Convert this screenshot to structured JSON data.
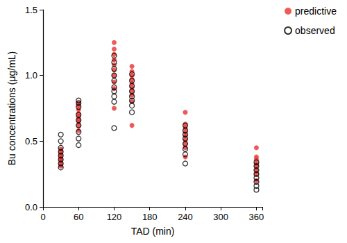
{
  "chart_data": {
    "type": "scatter",
    "x_label": "TAD (min)",
    "y_label": "Bu concentrations (μg/mL)",
    "xlim": [
      0,
      370
    ],
    "xticks": [
      0,
      60,
      120,
      180,
      240,
      300,
      360
    ],
    "ylim": [
      0,
      1.5
    ],
    "yticks": [
      {
        "value": 0,
        "label": "0.0"
      },
      0.5,
      {
        "value": 1,
        "label": "1.0"
      },
      1.5
    ],
    "grid": false,
    "legend": "top-right",
    "series": [
      {
        "name": "predictive",
        "color": "#e8322f",
        "marker": "circle",
        "x": [
          30,
          30,
          30,
          30,
          30,
          30,
          30,
          30,
          60,
          60,
          60,
          60,
          60,
          60,
          60,
          60,
          60,
          120,
          120,
          120,
          120,
          120,
          120,
          120,
          120,
          120,
          120,
          150,
          150,
          150,
          150,
          150,
          150,
          150,
          150,
          150,
          150,
          240,
          240,
          240,
          240,
          240,
          240,
          240,
          240,
          240,
          360,
          360,
          360,
          360,
          360,
          360,
          360,
          360
        ],
        "values": [
          0.31,
          0.33,
          0.35,
          0.37,
          0.38,
          0.4,
          0.42,
          0.44,
          0.58,
          0.62,
          0.65,
          0.67,
          0.69,
          0.71,
          0.74,
          0.77,
          0.79,
          0.75,
          0.9,
          0.95,
          1.0,
          1.04,
          1.08,
          1.12,
          1.16,
          1.2,
          1.25,
          0.62,
          0.8,
          0.85,
          0.88,
          0.91,
          0.94,
          0.97,
          1.0,
          1.03,
          1.07,
          0.38,
          0.45,
          0.48,
          0.51,
          0.54,
          0.57,
          0.6,
          0.63,
          0.72,
          0.2,
          0.25,
          0.28,
          0.31,
          0.33,
          0.36,
          0.38,
          0.45
        ]
      },
      {
        "name": "observed",
        "color": "#000000",
        "marker": "open_circle",
        "x": [
          30,
          30,
          30,
          30,
          30,
          30,
          30,
          30,
          60,
          60,
          60,
          60,
          60,
          60,
          60,
          60,
          60,
          120,
          120,
          120,
          120,
          120,
          120,
          120,
          120,
          120,
          120,
          150,
          150,
          150,
          150,
          150,
          150,
          150,
          150,
          240,
          240,
          240,
          240,
          240,
          240,
          240,
          240,
          360,
          360,
          360,
          360,
          360,
          360,
          360,
          360
        ],
        "values": [
          0.3,
          0.33,
          0.36,
          0.39,
          0.42,
          0.45,
          0.5,
          0.55,
          0.47,
          0.52,
          0.57,
          0.62,
          0.66,
          0.7,
          0.76,
          0.79,
          0.81,
          0.6,
          0.8,
          0.84,
          0.88,
          0.91,
          0.96,
          1.0,
          1.05,
          1.1,
          1.15,
          0.72,
          0.77,
          0.81,
          0.84,
          0.88,
          0.92,
          0.96,
          1.01,
          0.33,
          0.4,
          0.44,
          0.48,
          0.52,
          0.55,
          0.58,
          0.62,
          0.13,
          0.16,
          0.19,
          0.22,
          0.25,
          0.28,
          0.31,
          0.34
        ]
      }
    ]
  }
}
